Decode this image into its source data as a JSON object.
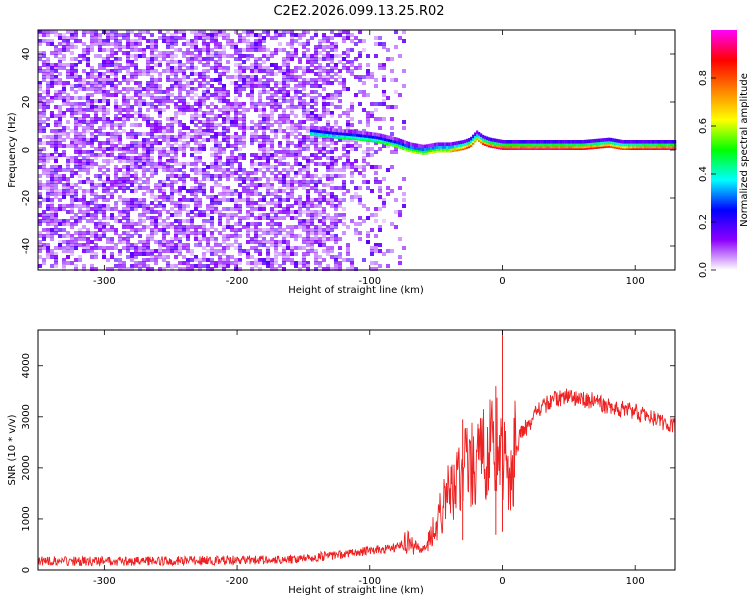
{
  "title": "C2E2.2026.099.13.25.R02",
  "colors": {
    "background": "#ffffff",
    "snr_line": "#ee2222",
    "spectrogram_noise": "#6a1ee6",
    "ridge_core": "#ff2a1a"
  },
  "chart_data": [
    {
      "type": "heatmap",
      "xlabel": "Height of straight line (km)",
      "ylabel": "Frequency (Hz)",
      "xlim": [
        -350,
        130
      ],
      "ylim": [
        -50,
        50
      ],
      "xticks": [
        -300,
        -200,
        -100,
        0,
        100
      ],
      "yticks": [
        -40,
        -20,
        0,
        20,
        40
      ],
      "grid": false,
      "colorbar": {
        "label": "Normalized spectral amplitude",
        "range": [
          0,
          1
        ],
        "ticks": [
          "0.0",
          "0.2",
          "0.4",
          "0.6",
          "0.8"
        ],
        "colormap": [
          "#ffffff",
          "#8c00ff",
          "#0000ff",
          "#00ffff",
          "#00ff00",
          "#ffff00",
          "#ff8000",
          "#ff0000",
          "#ff00ff"
        ]
      },
      "noise_region": {
        "x_range": [
          -350,
          -75
        ],
        "amplitude": 0.15
      },
      "ridge": {
        "x": [
          -145,
          -130,
          -110,
          -95,
          -80,
          -70,
          -60,
          -50,
          -40,
          -30,
          -25,
          -20,
          -15,
          -10,
          0,
          20,
          40,
          60,
          80,
          90,
          100,
          130
        ],
        "freq": [
          6,
          5,
          4,
          3,
          1,
          -1,
          -2,
          -1,
          -1,
          0,
          1,
          4,
          2,
          1,
          0,
          0,
          0,
          0,
          1,
          0,
          0,
          0
        ],
        "amplitude": [
          0.45,
          0.45,
          0.5,
          0.5,
          0.55,
          0.6,
          0.6,
          0.65,
          0.7,
          0.8,
          0.85,
          0.7,
          0.85,
          0.9,
          0.95,
          0.95,
          0.95,
          0.9,
          0.85,
          0.8,
          0.9,
          0.95
        ]
      }
    },
    {
      "type": "line",
      "xlabel": "Height of straight line (km)",
      "ylabel": "SNR (10 * v/v)",
      "xlim": [
        -350,
        130
      ],
      "ylim": [
        0,
        4700
      ],
      "xticks": [
        -300,
        -200,
        -100,
        0,
        100
      ],
      "yticks": [
        0,
        1000,
        2000,
        3000,
        4000
      ],
      "grid": false,
      "series": [
        {
          "x": [
            -350,
            -300,
            -250,
            -200,
            -160,
            -130,
            -110,
            -100,
            -90,
            -80,
            -70,
            -60,
            -55,
            -50,
            -45,
            -40,
            -35,
            -30,
            -25,
            -20,
            -15,
            -10,
            -5,
            0,
            5,
            10,
            15,
            20,
            25,
            30,
            40,
            50,
            60,
            70,
            80,
            90,
            100,
            110,
            120,
            130
          ],
          "y": [
            180,
            170,
            180,
            190,
            210,
            280,
            350,
            380,
            400,
            450,
            550,
            400,
            550,
            900,
            1200,
            1500,
            1700,
            1950,
            2000,
            2150,
            2250,
            2400,
            2300,
            2500,
            1500,
            2400,
            2700,
            2850,
            3050,
            3200,
            3350,
            3400,
            3350,
            3300,
            3200,
            3150,
            3100,
            3000,
            2900,
            2800
          ],
          "spikes": [
            {
              "x": -30,
              "y": 2950
            },
            {
              "x": -5,
              "y": 3600
            },
            {
              "x": 0,
              "y": 4700
            }
          ]
        }
      ]
    }
  ]
}
